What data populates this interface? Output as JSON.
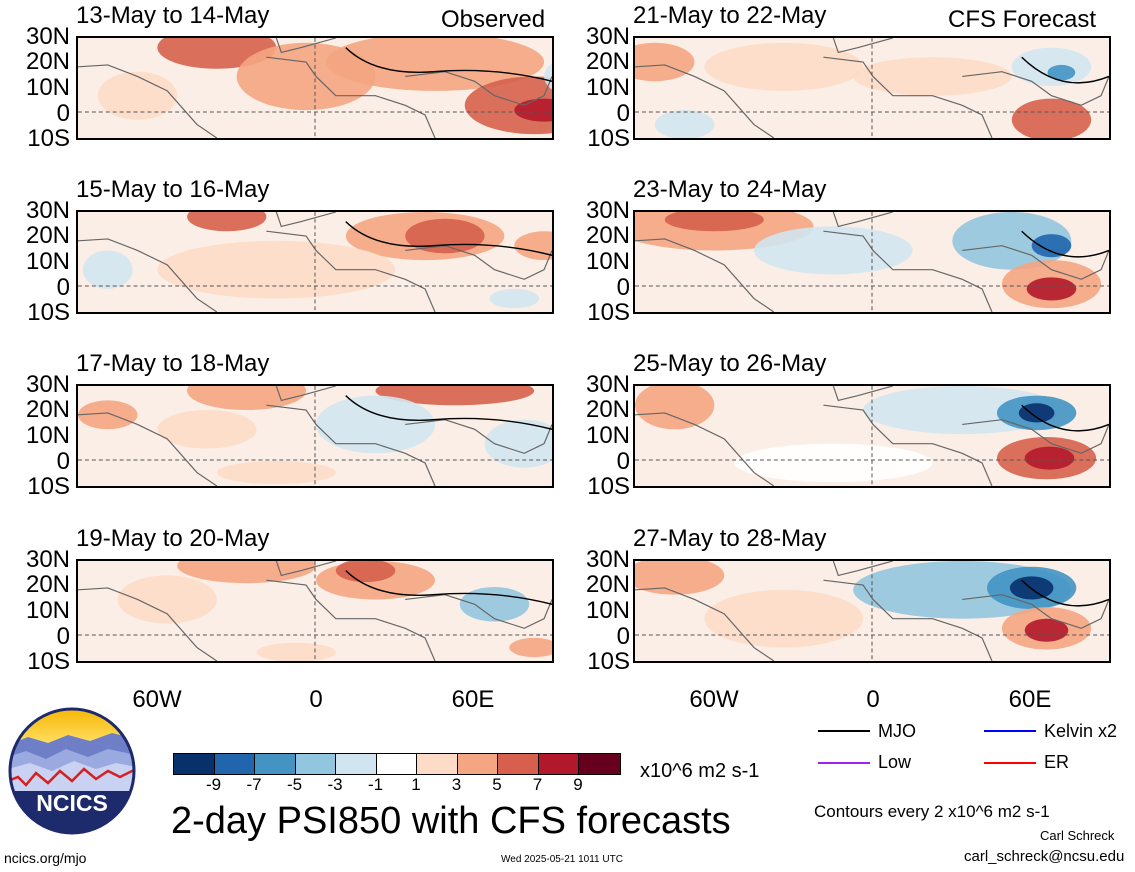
{
  "header": {
    "observed_label": "Observed",
    "forecast_label": "CFS Forecast"
  },
  "lat_labels": [
    "30N",
    "20N",
    "10N",
    "0",
    "10S"
  ],
  "lon_labels": [
    "60W",
    "0",
    "60E"
  ],
  "panels_left": [
    {
      "title": "13-May to 14-May"
    },
    {
      "title": "15-May to 16-May"
    },
    {
      "title": "17-May to 18-May"
    },
    {
      "title": "19-May to 20-May"
    }
  ],
  "panels_right": [
    {
      "title": "21-May to 22-May"
    },
    {
      "title": "23-May to 24-May"
    },
    {
      "title": "25-May to 26-May"
    },
    {
      "title": "27-May to 28-May"
    }
  ],
  "colorbar": {
    "ticks": [
      "-9",
      "-7",
      "-5",
      "-3",
      "-1",
      "1",
      "3",
      "5",
      "7",
      "9"
    ],
    "units": "x10^6 m2 s-1",
    "colors": [
      "#08306b",
      "#2166ac",
      "#4393c3",
      "#92c5de",
      "#d1e5f0",
      "#ffffff",
      "#fddbc7",
      "#f4a582",
      "#d6604d",
      "#b2182b",
      "#67001f"
    ]
  },
  "legend": {
    "items": [
      {
        "label": "MJO",
        "color": "#000000"
      },
      {
        "label": "Kelvin x2",
        "color": "#0000ff"
      },
      {
        "label": "Low",
        "color": "#a020f0"
      },
      {
        "label": "ER",
        "color": "#ff0000"
      }
    ],
    "contours_note": "Contours every 2 x10^6 m2 s-1"
  },
  "footer": {
    "main_title": "2-day PSI850 with CFS forecasts",
    "logo_text": "NCICS",
    "url": "ncics.org/mjo",
    "timestamp": "Wed 2025-05-21 1011 UTC",
    "author": "Carl Schreck",
    "email": "carl_schreck@ncsu.edu"
  }
}
